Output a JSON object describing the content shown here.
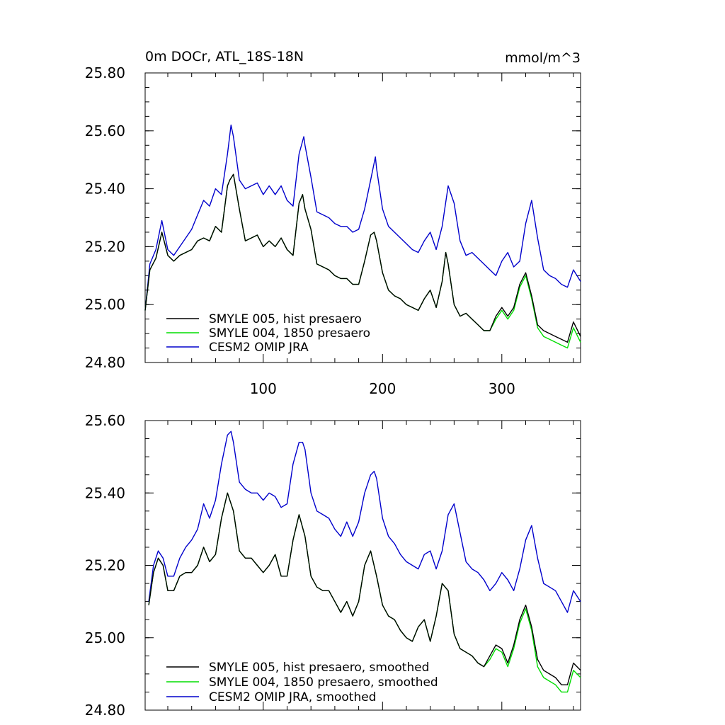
{
  "chart_data": [
    {
      "type": "line",
      "title": "0m DOCr, ATL_18S-18N",
      "units": "mmol/m^3",
      "xlim": [
        1,
        366
      ],
      "ylim": [
        24.8,
        25.8
      ],
      "xticks": [
        100,
        200,
        300
      ],
      "xtick_labels": [
        "100",
        "200",
        "300"
      ],
      "yticks": [
        24.8,
        25.0,
        25.2,
        25.4,
        25.6,
        25.8
      ],
      "ytick_labels": [
        "24.80",
        "25.00",
        "25.20",
        "25.40",
        "25.60",
        "25.80"
      ],
      "legend_position": "bottom-left",
      "series": [
        {
          "name": "SMYLE 005, hist presaero",
          "color": "#000000",
          "x": [
            1,
            5,
            10,
            15,
            20,
            25,
            30,
            35,
            40,
            45,
            50,
            55,
            60,
            65,
            70,
            72,
            75,
            80,
            85,
            90,
            95,
            100,
            105,
            110,
            115,
            120,
            125,
            130,
            133,
            135,
            140,
            145,
            150,
            155,
            160,
            165,
            170,
            175,
            180,
            185,
            190,
            193,
            195,
            200,
            205,
            210,
            215,
            220,
            225,
            230,
            235,
            240,
            245,
            250,
            253,
            255,
            260,
            265,
            270,
            275,
            280,
            285,
            290,
            295,
            300,
            305,
            310,
            315,
            320,
            325,
            330,
            335,
            340,
            345,
            350,
            355,
            360,
            366
          ],
          "values": [
            24.98,
            25.12,
            25.16,
            25.25,
            25.17,
            25.15,
            25.17,
            25.18,
            25.19,
            25.22,
            25.23,
            25.22,
            25.27,
            25.25,
            25.41,
            25.43,
            25.45,
            25.33,
            25.22,
            25.23,
            25.24,
            25.2,
            25.22,
            25.2,
            25.23,
            25.19,
            25.17,
            25.35,
            25.38,
            25.33,
            25.26,
            25.14,
            25.13,
            25.12,
            25.1,
            25.09,
            25.09,
            25.07,
            25.07,
            25.15,
            25.24,
            25.25,
            25.22,
            25.11,
            25.05,
            25.03,
            25.02,
            25.0,
            24.99,
            24.98,
            25.02,
            25.05,
            24.99,
            25.08,
            25.18,
            25.14,
            25.0,
            24.96,
            24.97,
            24.95,
            24.93,
            24.91,
            24.91,
            24.96,
            24.99,
            24.96,
            24.99,
            25.07,
            25.11,
            25.03,
            24.93,
            24.91,
            24.9,
            24.89,
            24.88,
            24.87,
            24.94,
            24.89
          ]
        },
        {
          "name": "SMYLE 004, 1850 presaero",
          "color": "#00dd00",
          "x": [
            1,
            5,
            10,
            15,
            20,
            25,
            30,
            35,
            40,
            45,
            50,
            55,
            60,
            65,
            70,
            72,
            75,
            80,
            85,
            90,
            95,
            100,
            105,
            110,
            115,
            120,
            125,
            130,
            133,
            135,
            140,
            145,
            150,
            155,
            160,
            165,
            170,
            175,
            180,
            185,
            190,
            193,
            195,
            200,
            205,
            210,
            215,
            220,
            225,
            230,
            235,
            240,
            245,
            250,
            253,
            255,
            260,
            265,
            270,
            275,
            280,
            285,
            290,
            295,
            300,
            305,
            310,
            315,
            320,
            325,
            330,
            335,
            340,
            345,
            350,
            355,
            360,
            366
          ],
          "values": [
            24.98,
            25.12,
            25.16,
            25.25,
            25.17,
            25.15,
            25.17,
            25.18,
            25.19,
            25.22,
            25.23,
            25.22,
            25.27,
            25.25,
            25.41,
            25.43,
            25.45,
            25.33,
            25.22,
            25.23,
            25.24,
            25.2,
            25.22,
            25.2,
            25.23,
            25.19,
            25.17,
            25.35,
            25.38,
            25.33,
            25.26,
            25.14,
            25.13,
            25.12,
            25.1,
            25.09,
            25.09,
            25.07,
            25.07,
            25.15,
            25.24,
            25.25,
            25.22,
            25.11,
            25.05,
            25.03,
            25.02,
            25.0,
            24.99,
            24.98,
            25.02,
            25.05,
            24.99,
            25.08,
            25.18,
            25.14,
            25.0,
            24.96,
            24.97,
            24.95,
            24.93,
            24.91,
            24.91,
            24.95,
            24.98,
            24.95,
            24.98,
            25.06,
            25.1,
            25.02,
            24.92,
            24.89,
            24.88,
            24.87,
            24.86,
            24.85,
            24.92,
            24.87
          ]
        },
        {
          "name": "CESM2 OMIP JRA",
          "color": "#0000cc",
          "x": [
            1,
            5,
            10,
            15,
            20,
            25,
            30,
            35,
            40,
            45,
            50,
            55,
            60,
            65,
            70,
            73,
            75,
            80,
            85,
            90,
            95,
            100,
            105,
            110,
            115,
            120,
            125,
            130,
            134,
            135,
            140,
            145,
            150,
            155,
            160,
            165,
            170,
            175,
            180,
            185,
            190,
            194,
            195,
            200,
            205,
            210,
            215,
            220,
            225,
            230,
            235,
            240,
            245,
            250,
            255,
            260,
            265,
            270,
            275,
            280,
            285,
            290,
            295,
            300,
            305,
            310,
            315,
            320,
            325,
            330,
            335,
            340,
            345,
            350,
            355,
            360,
            366
          ],
          "values": [
            24.98,
            25.14,
            25.19,
            25.29,
            25.19,
            25.17,
            25.2,
            25.23,
            25.26,
            25.31,
            25.36,
            25.34,
            25.4,
            25.38,
            25.52,
            25.62,
            25.58,
            25.43,
            25.4,
            25.41,
            25.42,
            25.38,
            25.41,
            25.38,
            25.41,
            25.36,
            25.34,
            25.52,
            25.58,
            25.55,
            25.44,
            25.32,
            25.31,
            25.3,
            25.28,
            25.27,
            25.27,
            25.25,
            25.26,
            25.33,
            25.43,
            25.51,
            25.47,
            25.33,
            25.27,
            25.25,
            25.23,
            25.21,
            25.19,
            25.18,
            25.22,
            25.25,
            25.19,
            25.27,
            25.41,
            25.35,
            25.22,
            25.17,
            25.18,
            25.16,
            25.14,
            25.12,
            25.1,
            25.15,
            25.18,
            25.13,
            25.15,
            25.28,
            25.36,
            25.23,
            25.12,
            25.1,
            25.09,
            25.07,
            25.06,
            25.12,
            25.08
          ]
        }
      ]
    },
    {
      "type": "line",
      "xlim": [
        1,
        366
      ],
      "ylim": [
        24.8,
        25.6
      ],
      "yticks": [
        24.8,
        25.0,
        25.2,
        25.4,
        25.6
      ],
      "ytick_labels": [
        "24.80",
        "25.00",
        "25.20",
        "25.40",
        "25.60"
      ],
      "legend_position": "bottom-left",
      "series": [
        {
          "name": "SMYLE 005, hist presaero, smoothed",
          "color": "#000000",
          "x": [
            4,
            8,
            12,
            16,
            20,
            25,
            30,
            35,
            40,
            45,
            50,
            55,
            60,
            65,
            70,
            75,
            80,
            85,
            90,
            95,
            100,
            105,
            110,
            115,
            120,
            125,
            130,
            135,
            140,
            145,
            150,
            155,
            160,
            165,
            170,
            175,
            180,
            185,
            190,
            195,
            200,
            205,
            210,
            215,
            220,
            225,
            230,
            235,
            240,
            245,
            250,
            255,
            260,
            265,
            270,
            275,
            280,
            285,
            290,
            295,
            300,
            305,
            310,
            315,
            320,
            325,
            330,
            335,
            340,
            345,
            350,
            355,
            360,
            366
          ],
          "values": [
            25.09,
            25.18,
            25.22,
            25.2,
            25.13,
            25.13,
            25.17,
            25.18,
            25.18,
            25.2,
            25.25,
            25.21,
            25.23,
            25.33,
            25.4,
            25.35,
            25.24,
            25.22,
            25.22,
            25.2,
            25.18,
            25.2,
            25.23,
            25.17,
            25.17,
            25.27,
            25.34,
            25.28,
            25.17,
            25.14,
            25.13,
            25.13,
            25.1,
            25.07,
            25.1,
            25.06,
            25.1,
            25.2,
            25.24,
            25.17,
            25.09,
            25.06,
            25.05,
            25.02,
            25.0,
            24.99,
            25.03,
            25.05,
            24.99,
            25.06,
            25.15,
            25.13,
            25.01,
            24.97,
            24.96,
            24.95,
            24.93,
            24.92,
            24.95,
            24.98,
            24.97,
            24.93,
            24.98,
            25.05,
            25.09,
            25.03,
            24.94,
            24.91,
            24.9,
            24.89,
            24.87,
            24.87,
            24.93,
            24.91
          ]
        },
        {
          "name": "SMYLE 004, 1850 presaero, smoothed",
          "color": "#00dd00",
          "x": [
            4,
            8,
            12,
            16,
            20,
            25,
            30,
            35,
            40,
            45,
            50,
            55,
            60,
            65,
            70,
            75,
            80,
            85,
            90,
            95,
            100,
            105,
            110,
            115,
            120,
            125,
            130,
            135,
            140,
            145,
            150,
            155,
            160,
            165,
            170,
            175,
            180,
            185,
            190,
            195,
            200,
            205,
            210,
            215,
            220,
            225,
            230,
            235,
            240,
            245,
            250,
            255,
            260,
            265,
            270,
            275,
            280,
            285,
            290,
            295,
            300,
            305,
            310,
            315,
            320,
            325,
            330,
            335,
            340,
            345,
            350,
            355,
            360,
            366
          ],
          "values": [
            25.09,
            25.18,
            25.22,
            25.2,
            25.13,
            25.13,
            25.17,
            25.18,
            25.18,
            25.2,
            25.25,
            25.21,
            25.23,
            25.33,
            25.4,
            25.35,
            25.24,
            25.22,
            25.22,
            25.2,
            25.18,
            25.2,
            25.23,
            25.17,
            25.17,
            25.27,
            25.34,
            25.28,
            25.17,
            25.14,
            25.13,
            25.13,
            25.1,
            25.07,
            25.1,
            25.06,
            25.1,
            25.2,
            25.24,
            25.17,
            25.09,
            25.06,
            25.05,
            25.02,
            25.0,
            24.99,
            25.03,
            25.05,
            24.99,
            25.06,
            25.15,
            25.13,
            25.01,
            24.97,
            24.96,
            24.95,
            24.93,
            24.92,
            24.94,
            24.97,
            24.96,
            24.92,
            24.97,
            25.04,
            25.08,
            25.02,
            24.92,
            24.89,
            24.88,
            24.87,
            24.85,
            24.85,
            24.91,
            24.89
          ]
        },
        {
          "name": "CESM2 OMIP JRA, smoothed",
          "color": "#0000cc",
          "x": [
            4,
            8,
            12,
            16,
            20,
            25,
            30,
            35,
            40,
            45,
            50,
            55,
            60,
            65,
            70,
            73,
            75,
            80,
            85,
            90,
            95,
            100,
            105,
            110,
            115,
            120,
            125,
            130,
            133,
            135,
            140,
            145,
            150,
            155,
            160,
            165,
            170,
            175,
            180,
            185,
            190,
            193,
            195,
            200,
            205,
            210,
            215,
            220,
            225,
            230,
            235,
            240,
            245,
            250,
            255,
            260,
            265,
            270,
            275,
            280,
            285,
            290,
            295,
            300,
            305,
            310,
            315,
            320,
            325,
            330,
            335,
            340,
            345,
            350,
            355,
            360,
            366
          ],
          "values": [
            25.1,
            25.2,
            25.24,
            25.22,
            25.17,
            25.17,
            25.22,
            25.25,
            25.27,
            25.3,
            25.37,
            25.33,
            25.38,
            25.48,
            25.56,
            25.57,
            25.54,
            25.43,
            25.41,
            25.4,
            25.4,
            25.38,
            25.4,
            25.39,
            25.36,
            25.37,
            25.48,
            25.54,
            25.54,
            25.52,
            25.4,
            25.35,
            25.34,
            25.33,
            25.3,
            25.28,
            25.32,
            25.28,
            25.32,
            25.4,
            25.45,
            25.46,
            25.44,
            25.33,
            25.28,
            25.26,
            25.23,
            25.21,
            25.2,
            25.19,
            25.23,
            25.24,
            25.19,
            25.24,
            25.34,
            25.37,
            25.29,
            25.21,
            25.19,
            25.18,
            25.16,
            25.13,
            25.15,
            25.18,
            25.16,
            25.13,
            25.19,
            25.27,
            25.31,
            25.22,
            25.15,
            25.14,
            25.13,
            25.1,
            25.07,
            25.13,
            25.1
          ]
        }
      ]
    }
  ]
}
